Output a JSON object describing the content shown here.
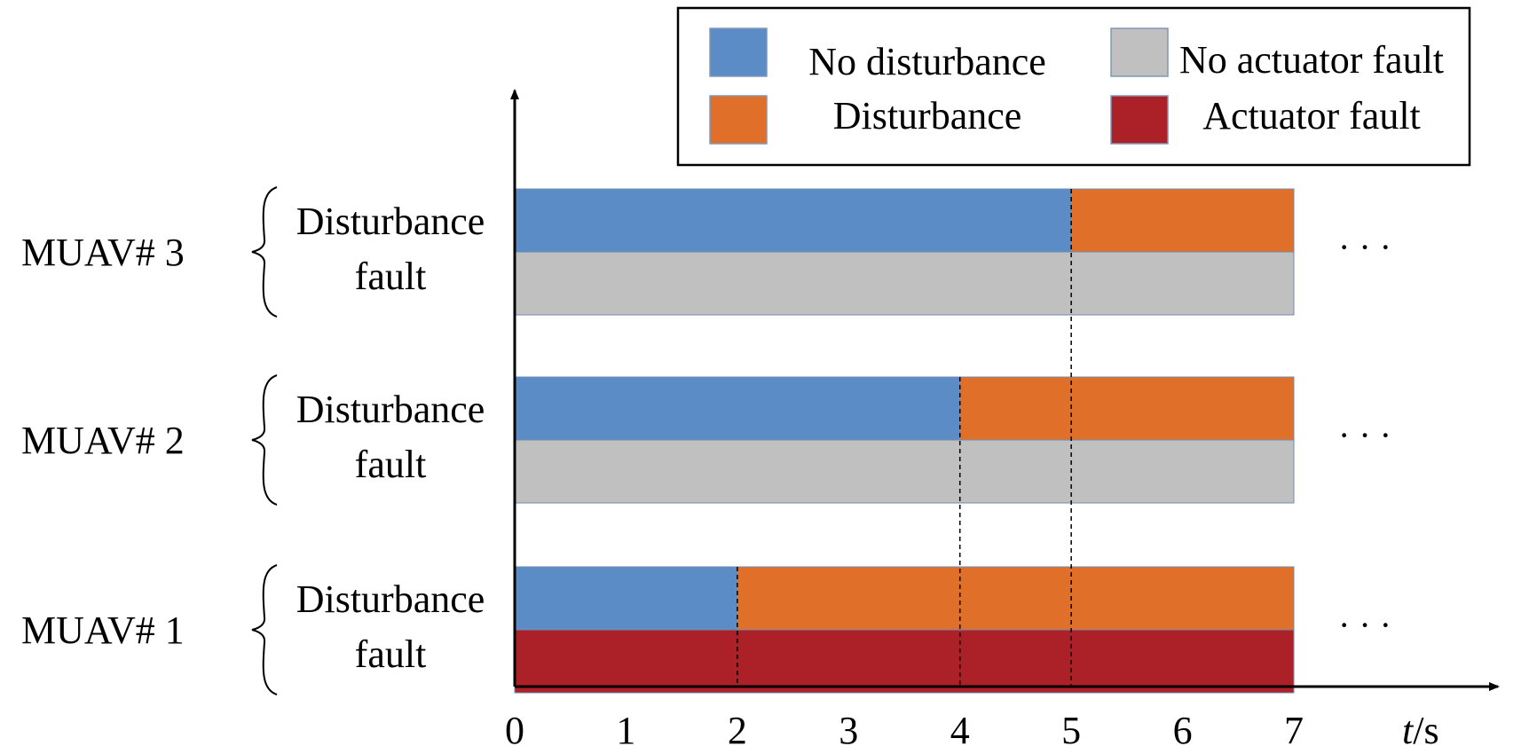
{
  "chart_data": {
    "type": "bar",
    "chart_subtype": "timeline-gantt",
    "x_ticks": [
      "0",
      "1",
      "2",
      "3",
      "4",
      "5",
      "6",
      "7"
    ],
    "x_unit_label": "t/s",
    "xlim": [
      0,
      7
    ],
    "legend": {
      "placement": "top-right",
      "entries": [
        {
          "key": "no_disturbance",
          "label": "No disturbance",
          "color": "#5b8cc5"
        },
        {
          "key": "no_actuator_fault",
          "label": "No actuator fault",
          "color": "#c0c0c0"
        },
        {
          "key": "disturbance",
          "label": "Disturbance",
          "color": "#e06f2a"
        },
        {
          "key": "actuator_fault",
          "label": "Actuator fault",
          "color": "#ac2027"
        }
      ]
    },
    "agents": [
      {
        "name": "MUAV# 3",
        "row_label_line1": "Disturbance",
        "row_label_line2": "fault",
        "disturbance_segments": [
          {
            "start": 0,
            "end": 5,
            "state": "no_disturbance"
          },
          {
            "start": 5,
            "end": 7,
            "state": "disturbance"
          }
        ],
        "fault_segments": [
          {
            "start": 0,
            "end": 7,
            "state": "no_actuator_fault"
          }
        ],
        "continuation": "· · ·"
      },
      {
        "name": "MUAV# 2",
        "row_label_line1": "Disturbance",
        "row_label_line2": "fault",
        "disturbance_segments": [
          {
            "start": 0,
            "end": 4,
            "state": "no_disturbance"
          },
          {
            "start": 4,
            "end": 7,
            "state": "disturbance"
          }
        ],
        "fault_segments": [
          {
            "start": 0,
            "end": 7,
            "state": "no_actuator_fault"
          }
        ],
        "continuation": "· · ·"
      },
      {
        "name": "MUAV# 1",
        "row_label_line1": "Disturbance",
        "row_label_line2": "fault",
        "disturbance_segments": [
          {
            "start": 0,
            "end": 2,
            "state": "no_disturbance"
          },
          {
            "start": 2,
            "end": 7,
            "state": "disturbance"
          }
        ],
        "fault_segments": [
          {
            "start": 0,
            "end": 7,
            "state": "actuator_fault"
          }
        ],
        "continuation": "· · ·"
      }
    ],
    "event_lines": [
      2,
      4,
      5
    ]
  }
}
